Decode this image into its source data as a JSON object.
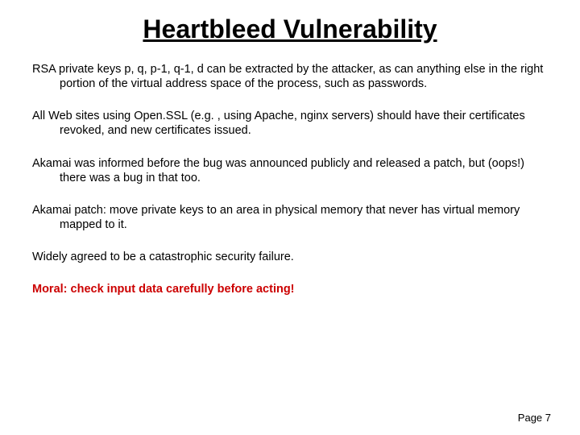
{
  "title": "Heartbleed Vulnerability",
  "paragraphs": {
    "p1": "RSA private keys p, q, p-1, q-1, d can be extracted by the attacker, as can anything else in the right portion of the virtual address space of the process, such as passwords.",
    "p2": "All Web sites using Open.SSL (e.g. , using Apache, nginx servers) should have their certificates revoked, and new certificates issued.",
    "p3": "Akamai was informed before the bug was announced publicly and released a patch, but (oops!) there was a bug in that too.",
    "p4": "Akamai patch: move private keys to an area in physical memory that never has virtual memory mapped to it.",
    "p5": "Widely agreed to be a catastrophic security failure.",
    "moral": "Moral:  check input data carefully before acting!"
  },
  "page_number": "Page 7",
  "colors": {
    "title_color": "#000000",
    "body_color": "#000000",
    "moral_color": "#cc0000",
    "background": "#ffffff"
  },
  "typography": {
    "font_family": "Comic Sans MS",
    "title_fontsize": 32,
    "body_fontsize": 14.5,
    "page_num_fontsize": 13
  }
}
